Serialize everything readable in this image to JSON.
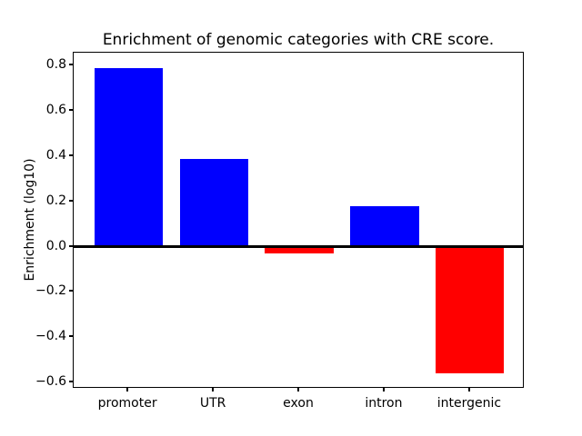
{
  "chart_data": {
    "type": "bar",
    "title": "Enrichment of genomic categories with CRE score.",
    "ylabel": "Enrichment (log10)",
    "xlabel": "",
    "categories": [
      "promoter",
      "UTR",
      "exon",
      "intron",
      "intergenic"
    ],
    "values": [
      0.79,
      0.39,
      -0.03,
      0.18,
      -0.56
    ],
    "bar_colors": [
      "#0000ff",
      "#0000ff",
      "#ff0000",
      "#0000ff",
      "#ff0000"
    ],
    "positive_color": "#0000ff",
    "negative_color": "#ff0000",
    "bar_width": 0.8,
    "ylim": [
      -0.628,
      0.858
    ],
    "xlim": [
      -0.64,
      4.64
    ],
    "yticks": [
      0.8,
      0.6,
      0.4,
      0.2,
      0.0,
      -0.2,
      -0.4,
      -0.6
    ],
    "ytick_labels": [
      "0.8",
      "0.6",
      "0.4",
      "0.2",
      "0.0",
      "−0.2",
      "−0.4",
      "−0.6"
    ],
    "zero_line": true,
    "grid": false,
    "legend": "none",
    "background_color": "#ffffff",
    "axis_color": "#000000"
  }
}
